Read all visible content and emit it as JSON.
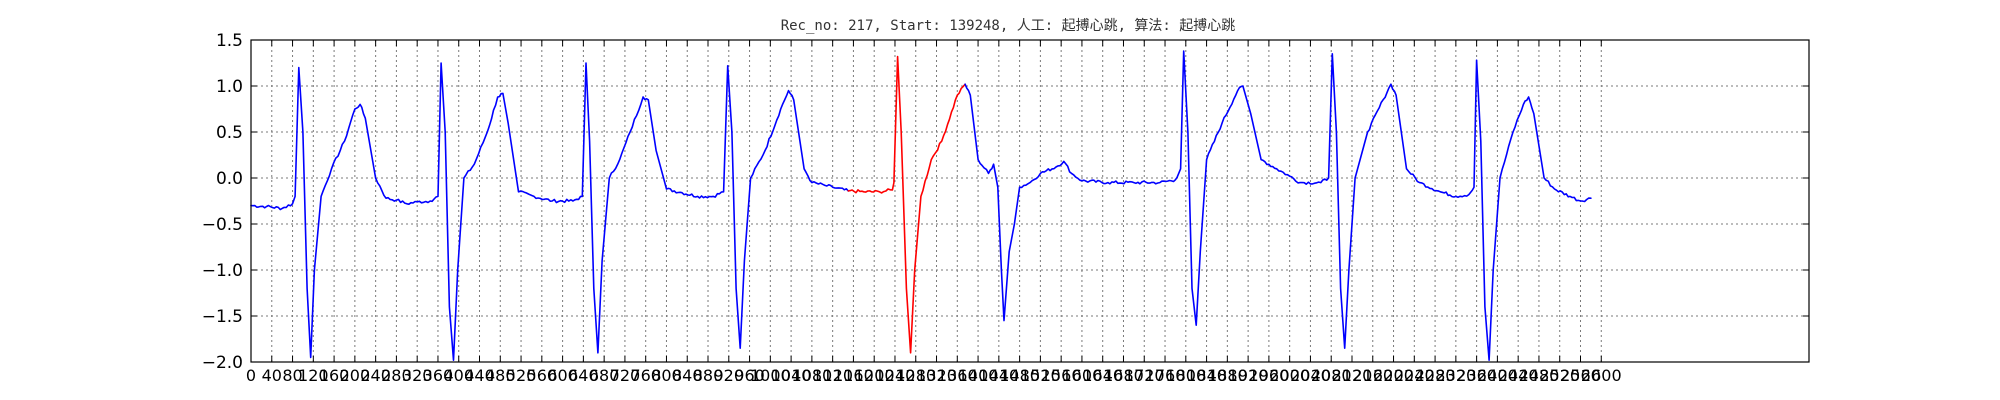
{
  "chart_data": {
    "type": "line",
    "title": "Rec_no: 217, Start: 139248, 人工: 起搏心跳, 算法: 起搏心跳",
    "xlabel": "",
    "ylabel": "",
    "xlim": [
      0,
      3000
    ],
    "ylim": [
      -2.0,
      1.5
    ],
    "grid": true,
    "x_tick_labels": [
      "0",
      "40",
      "80",
      "120",
      "160",
      "200",
      "240",
      "280",
      "320",
      "360",
      "400",
      "440",
      "480",
      "520",
      "560",
      "600",
      "640",
      "680",
      "720",
      "760",
      "800",
      "840",
      "880",
      "920",
      "960",
      "1000",
      "1040",
      "1080",
      "1120",
      "1160",
      "1200",
      "1240",
      "1280",
      "1320",
      "1360",
      "1400",
      "1440",
      "1480",
      "1520",
      "1560",
      "1600",
      "1640",
      "1680",
      "1720",
      "1760",
      "1800",
      "1840",
      "1880",
      "1920",
      "1960",
      "2000",
      "2040",
      "2080",
      "2120",
      "2160",
      "2200",
      "2240",
      "2280",
      "2320",
      "2360",
      "2400",
      "2440",
      "2480",
      "2520",
      "2560",
      "2600"
    ],
    "y_ticks": [
      -2.0,
      -1.5,
      -1.0,
      -0.5,
      0.0,
      0.5,
      1.0,
      1.5
    ],
    "y_tick_labels": [
      "−2.0",
      "−1.5",
      "−1.0",
      "−0.5",
      "0.0",
      "0.5",
      "1.0",
      "1.5"
    ],
    "series": [
      {
        "color": "#0000ff",
        "points": [
          [
            0,
            -0.3
          ],
          [
            30,
            -0.31
          ],
          [
            60,
            -0.33
          ],
          [
            80,
            -0.28
          ],
          [
            85,
            -0.2
          ],
          [
            92,
            1.2
          ],
          [
            100,
            0.5
          ],
          [
            108,
            -1.2
          ],
          [
            115,
            -1.95
          ],
          [
            122,
            -1.0
          ],
          [
            135,
            -0.2
          ],
          [
            155,
            0.1
          ],
          [
            180,
            0.4
          ],
          [
            200,
            0.75
          ],
          [
            210,
            0.8
          ],
          [
            220,
            0.65
          ],
          [
            240,
            0.0
          ],
          [
            260,
            -0.22
          ],
          [
            280,
            -0.24
          ],
          [
            300,
            -0.28
          ],
          [
            320,
            -0.26
          ],
          [
            345,
            -0.25
          ],
          [
            360,
            -0.2
          ],
          [
            366,
            1.25
          ],
          [
            374,
            0.5
          ],
          [
            382,
            -1.4
          ],
          [
            390,
            -1.98
          ],
          [
            398,
            -1.0
          ],
          [
            410,
            0.0
          ],
          [
            430,
            0.15
          ],
          [
            455,
            0.5
          ],
          [
            475,
            0.88
          ],
          [
            485,
            0.92
          ],
          [
            495,
            0.6
          ],
          [
            515,
            -0.15
          ],
          [
            545,
            -0.2
          ],
          [
            580,
            -0.25
          ],
          [
            620,
            -0.25
          ],
          [
            638,
            -0.2
          ],
          [
            645,
            1.25
          ],
          [
            652,
            0.4
          ],
          [
            660,
            -1.2
          ],
          [
            668,
            -1.9
          ],
          [
            676,
            -0.9
          ],
          [
            690,
            0.0
          ],
          [
            710,
            0.2
          ],
          [
            730,
            0.5
          ],
          [
            755,
            0.88
          ],
          [
            765,
            0.85
          ],
          [
            780,
            0.3
          ],
          [
            800,
            -0.12
          ],
          [
            830,
            -0.16
          ],
          [
            860,
            -0.2
          ],
          [
            890,
            -0.2
          ],
          [
            910,
            -0.15
          ],
          [
            918,
            1.22
          ],
          [
            926,
            0.5
          ],
          [
            934,
            -1.2
          ],
          [
            942,
            -1.85
          ],
          [
            950,
            -0.9
          ],
          [
            962,
            0.0
          ],
          [
            990,
            0.3
          ],
          [
            1020,
            0.75
          ],
          [
            1035,
            0.95
          ],
          [
            1045,
            0.85
          ],
          [
            1065,
            0.1
          ],
          [
            1080,
            -0.05
          ],
          [
            1105,
            -0.08
          ],
          [
            1120,
            -0.1
          ],
          [
            1150,
            -0.14
          ]
        ]
      },
      {
        "color": "#ff0000",
        "points": [
          [
            1150,
            -0.14
          ],
          [
            1180,
            -0.15
          ],
          [
            1210,
            -0.15
          ],
          [
            1235,
            -0.13
          ],
          [
            1238,
            -0.05
          ],
          [
            1245,
            1.32
          ],
          [
            1252,
            0.5
          ],
          [
            1262,
            -1.2
          ],
          [
            1270,
            -1.9
          ],
          [
            1278,
            -1.0
          ],
          [
            1290,
            -0.2
          ],
          [
            1310,
            0.2
          ],
          [
            1330,
            0.4
          ],
          [
            1360,
            0.9
          ],
          [
            1375,
            1.02
          ]
        ]
      },
      {
        "color": "#0000ff",
        "points": [
          [
            1375,
            1.02
          ],
          [
            1385,
            0.9
          ],
          [
            1400,
            0.2
          ],
          [
            1420,
            0.05
          ],
          [
            1430,
            0.15
          ],
          [
            1438,
            -0.1
          ],
          [
            1445,
            -1.0
          ],
          [
            1450,
            -1.55
          ],
          [
            1460,
            -0.8
          ],
          [
            1470,
            -0.5
          ],
          [
            1480,
            -0.1
          ],
          [
            1500,
            -0.05
          ],
          [
            1520,
            0.05
          ],
          [
            1550,
            0.12
          ],
          [
            1565,
            0.18
          ],
          [
            1580,
            0.05
          ],
          [
            1600,
            -0.03
          ],
          [
            1650,
            -0.05
          ],
          [
            1700,
            -0.05
          ],
          [
            1750,
            -0.05
          ],
          [
            1780,
            -0.02
          ],
          [
            1790,
            0.1
          ],
          [
            1796,
            1.38
          ],
          [
            1804,
            0.5
          ],
          [
            1812,
            -1.2
          ],
          [
            1820,
            -1.6
          ],
          [
            1828,
            -0.8
          ],
          [
            1840,
            0.2
          ],
          [
            1870,
            0.6
          ],
          [
            1900,
            0.95
          ],
          [
            1910,
            1.0
          ],
          [
            1925,
            0.7
          ],
          [
            1945,
            0.2
          ],
          [
            1975,
            0.1
          ],
          [
            2000,
            0.02
          ],
          [
            2020,
            -0.05
          ],
          [
            2060,
            -0.05
          ],
          [
            2075,
            0.0
          ],
          [
            2082,
            1.35
          ],
          [
            2090,
            0.5
          ],
          [
            2098,
            -1.2
          ],
          [
            2106,
            -1.85
          ],
          [
            2114,
            -1.0
          ],
          [
            2126,
            0.0
          ],
          [
            2150,
            0.5
          ],
          [
            2180,
            0.85
          ],
          [
            2195,
            1.02
          ],
          [
            2205,
            0.9
          ],
          [
            2225,
            0.1
          ],
          [
            2250,
            -0.05
          ],
          [
            2290,
            -0.15
          ],
          [
            2320,
            -0.2
          ],
          [
            2345,
            -0.18
          ],
          [
            2355,
            -0.1
          ],
          [
            2360,
            1.28
          ],
          [
            2368,
            0.4
          ],
          [
            2376,
            -1.4
          ],
          [
            2384,
            -1.98
          ],
          [
            2392,
            -1.0
          ],
          [
            2405,
            0.0
          ],
          [
            2430,
            0.5
          ],
          [
            2450,
            0.8
          ],
          [
            2460,
            0.88
          ],
          [
            2470,
            0.7
          ],
          [
            2490,
            0.0
          ],
          [
            2510,
            -0.12
          ],
          [
            2540,
            -0.2
          ],
          [
            2560,
            -0.25
          ],
          [
            2580,
            -0.22
          ]
        ]
      }
    ]
  }
}
